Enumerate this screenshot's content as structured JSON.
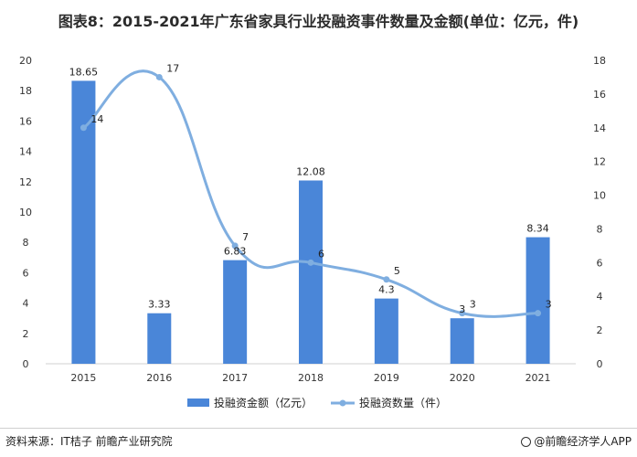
{
  "title": "图表8：2015-2021年广东省家具行业投融资事件数量及金额(单位：亿元，件)",
  "source": "资料来源：IT桔子 前瞻产业研究院",
  "credit": "@前瞻经济学人APP",
  "colors": {
    "bar": "#4a86d8",
    "line": "#7faee0"
  },
  "chart_data": {
    "type": "bar",
    "categories": [
      "2015",
      "2016",
      "2017",
      "2018",
      "2019",
      "2020",
      "2021"
    ],
    "series": [
      {
        "name": "投融资金额（亿元）",
        "type": "bar",
        "axis": "left",
        "values": [
          18.65,
          3.33,
          6.83,
          12.08,
          4.3,
          3,
          8.34
        ],
        "labels": [
          "18.65",
          "3.33",
          "6.83",
          "12.08",
          "4.3",
          "3",
          "8.34"
        ]
      },
      {
        "name": "投融资数量（件）",
        "type": "line",
        "axis": "right",
        "values": [
          14,
          17,
          7,
          6,
          5,
          3,
          3
        ],
        "labels": [
          "14",
          "17",
          "7",
          "6",
          "5",
          "3",
          "3"
        ]
      }
    ],
    "y_left": {
      "range": [
        0,
        20
      ],
      "ticks": [
        "0",
        "2",
        "4",
        "6",
        "8",
        "10",
        "12",
        "14",
        "16",
        "18",
        "20"
      ]
    },
    "y_right": {
      "range": [
        0,
        18
      ],
      "ticks": [
        "0",
        "2",
        "4",
        "6",
        "8",
        "10",
        "12",
        "14",
        "16",
        "18"
      ]
    },
    "legend": {
      "position": "bottom",
      "items": [
        "投融资金额（亿元）",
        "投融资数量（件）"
      ]
    },
    "grid": false
  }
}
